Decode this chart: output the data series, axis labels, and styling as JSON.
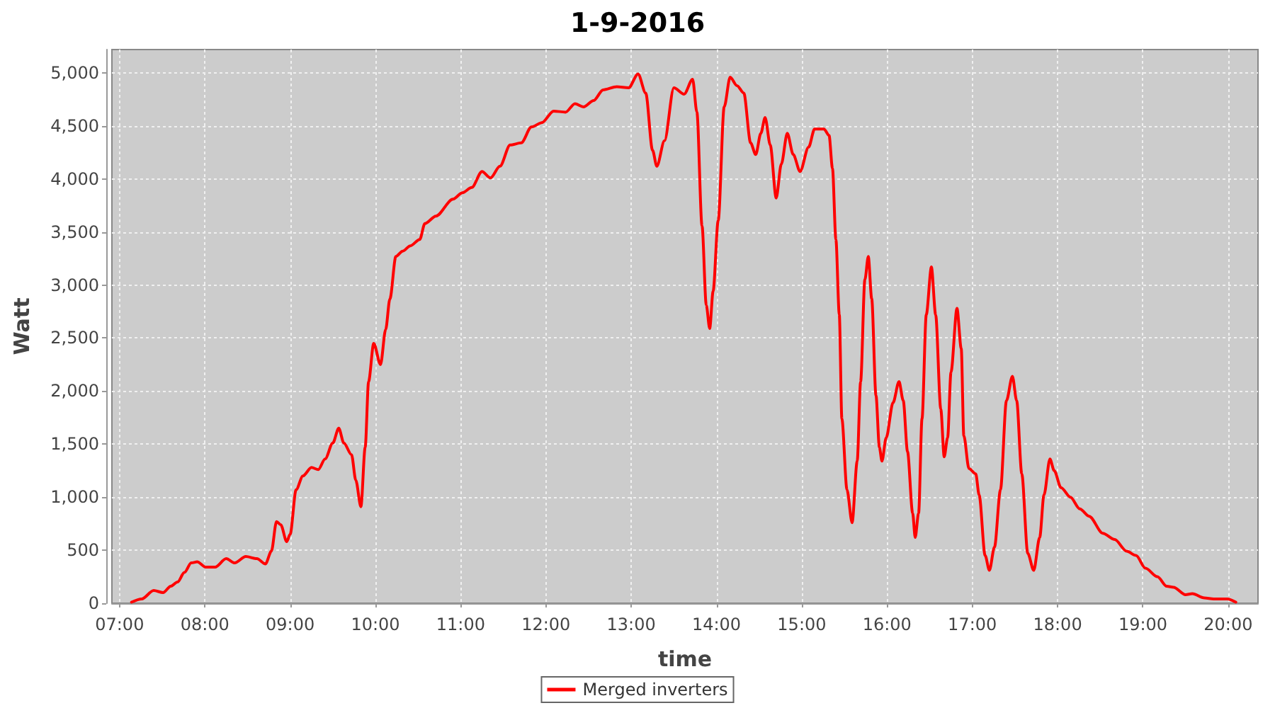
{
  "chart_data": {
    "type": "line",
    "title": "1-9-2016",
    "xlabel": "time",
    "ylabel": "Watt",
    "xlim": [
      6.91,
      20.35
    ],
    "ylim": [
      0,
      5220
    ],
    "xticks": [
      {
        "value": 7,
        "label": "07:00"
      },
      {
        "value": 8,
        "label": "08:00"
      },
      {
        "value": 9,
        "label": "09:00"
      },
      {
        "value": 10,
        "label": "10:00"
      },
      {
        "value": 11,
        "label": "11:00"
      },
      {
        "value": 12,
        "label": "12:00"
      },
      {
        "value": 13,
        "label": "13:00"
      },
      {
        "value": 14,
        "label": "14:00"
      },
      {
        "value": 15,
        "label": "15:00"
      },
      {
        "value": 16,
        "label": "16:00"
      },
      {
        "value": 17,
        "label": "17:00"
      },
      {
        "value": 18,
        "label": "18:00"
      },
      {
        "value": 19,
        "label": "19:00"
      },
      {
        "value": 20,
        "label": "20:00"
      }
    ],
    "yticks": [
      0,
      500,
      {
        "value": 1000,
        "label": "1,000"
      },
      {
        "value": 1500,
        "label": "1,500"
      },
      {
        "value": 2000,
        "label": "2,000"
      },
      {
        "value": 2500,
        "label": "2,500"
      },
      {
        "value": 3000,
        "label": "3,000"
      },
      {
        "value": 3500,
        "label": "3,500"
      },
      {
        "value": 4000,
        "label": "4,000"
      },
      {
        "value": 4500,
        "label": "4,500"
      },
      {
        "value": 5000,
        "label": "5,000"
      }
    ],
    "grid": true,
    "legend": "bottom",
    "marker": "none",
    "series": [
      {
        "name": "Merged inverters",
        "color": "#ff0000",
        "x": [
          7.14,
          7.26,
          7.4,
          7.51,
          7.6,
          7.68,
          7.76,
          7.84,
          7.91,
          8.01,
          8.12,
          8.25,
          8.35,
          8.48,
          8.61,
          8.71,
          8.78,
          8.84,
          8.89,
          8.96,
          9.0,
          9.07,
          9.15,
          9.25,
          9.33,
          9.41,
          9.5,
          9.57,
          9.63,
          9.72,
          9.77,
          9.83,
          9.88,
          9.92,
          9.98,
          10.06,
          10.12,
          10.17,
          10.24,
          10.32,
          10.41,
          10.52,
          10.58,
          10.71,
          10.91,
          11.02,
          11.13,
          11.25,
          11.35,
          11.46,
          11.58,
          11.71,
          11.83,
          11.95,
          12.09,
          12.23,
          12.34,
          12.44,
          12.56,
          12.67,
          12.83,
          12.97,
          13.08,
          13.17,
          13.25,
          13.3,
          13.39,
          13.5,
          13.62,
          13.72,
          13.77,
          13.83,
          13.88,
          13.92,
          13.96,
          14.02,
          14.09,
          14.16,
          14.24,
          14.32,
          14.4,
          14.46,
          14.52,
          14.57,
          14.63,
          14.7,
          14.76,
          14.83,
          14.9,
          14.98,
          15.08,
          15.15,
          15.26,
          15.32,
          15.36,
          15.4,
          15.44,
          15.47,
          15.53,
          15.59,
          15.65,
          15.69,
          15.74,
          15.78,
          15.82,
          15.87,
          15.91,
          15.94,
          15.99,
          16.07,
          16.14,
          16.19,
          16.24,
          16.3,
          16.33,
          16.37,
          16.41,
          16.46,
          16.52,
          16.57,
          16.63,
          16.67,
          16.71,
          16.75,
          16.82,
          16.87,
          16.9,
          16.96,
          17.04,
          17.08,
          17.15,
          17.2,
          17.26,
          17.33,
          17.4,
          17.47,
          17.52,
          17.58,
          17.65,
          17.72,
          17.79,
          17.84,
          17.91,
          17.96,
          18.04,
          18.15,
          18.26,
          18.37,
          18.53,
          18.67,
          18.81,
          18.92,
          19.03,
          19.17,
          19.28,
          19.36,
          19.5,
          19.58,
          19.72,
          19.83,
          19.99,
          20.09
        ],
        "values": [
          10,
          40,
          120,
          100,
          160,
          200,
          290,
          380,
          390,
          340,
          340,
          420,
          380,
          440,
          420,
          370,
          490,
          770,
          740,
          580,
          650,
          1070,
          1200,
          1280,
          1260,
          1360,
          1510,
          1650,
          1510,
          1400,
          1160,
          910,
          1470,
          2090,
          2450,
          2250,
          2580,
          2870,
          3270,
          3320,
          3370,
          3430,
          3580,
          3650,
          3810,
          3870,
          3920,
          4070,
          4010,
          4120,
          4320,
          4340,
          4490,
          4530,
          4640,
          4630,
          4710,
          4680,
          4740,
          4840,
          4870,
          4860,
          4990,
          4810,
          4270,
          4120,
          4360,
          4860,
          4800,
          4940,
          4630,
          3560,
          2810,
          2590,
          2940,
          3610,
          4680,
          4960,
          4880,
          4810,
          4340,
          4230,
          4430,
          4580,
          4320,
          3820,
          4140,
          4430,
          4230,
          4070,
          4300,
          4470,
          4470,
          4410,
          4100,
          3430,
          2720,
          1740,
          1070,
          760,
          1340,
          2090,
          3050,
          3270,
          2870,
          1960,
          1470,
          1340,
          1560,
          1890,
          2090,
          1910,
          1430,
          850,
          620,
          850,
          1740,
          2720,
          3170,
          2720,
          1830,
          1380,
          1560,
          2180,
          2780,
          2400,
          1580,
          1270,
          1220,
          1020,
          450,
          310,
          530,
          1070,
          1910,
          2140,
          1910,
          1220,
          470,
          310,
          620,
          1020,
          1360,
          1250,
          1090,
          1000,
          890,
          820,
          660,
          600,
          490,
          450,
          330,
          250,
          160,
          150,
          80,
          90,
          50,
          40,
          40,
          10
        ]
      }
    ]
  }
}
